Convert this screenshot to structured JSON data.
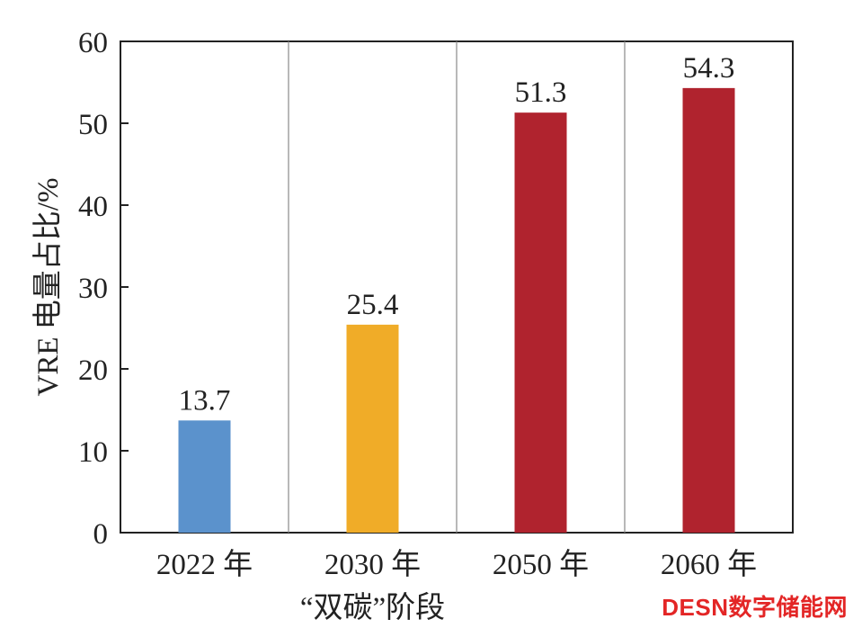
{
  "chart_data": {
    "type": "bar",
    "title": "",
    "xlabel": "",
    "ylabel": "VRE 电量占比/%",
    "ylim": [
      0,
      60
    ],
    "yticks": [
      0,
      10,
      20,
      30,
      40,
      50,
      60
    ],
    "categories": [
      "2022 年",
      "2030 年",
      "2050 年",
      "2060 年"
    ],
    "values": [
      13.7,
      25.4,
      51.3,
      54.3
    ],
    "value_labels": [
      "13.7",
      "25.4",
      "51.3",
      "54.3"
    ],
    "colors": [
      "#5b92cc",
      "#f0ac28",
      "#b0232e",
      "#b0232e"
    ],
    "group_label": {
      "text": "“双碳”阶段",
      "spans_categories": [
        1,
        3
      ]
    },
    "grid": false,
    "legend": "none"
  },
  "watermark": {
    "text": "DESN数字储能网",
    "color": "#e32626"
  }
}
